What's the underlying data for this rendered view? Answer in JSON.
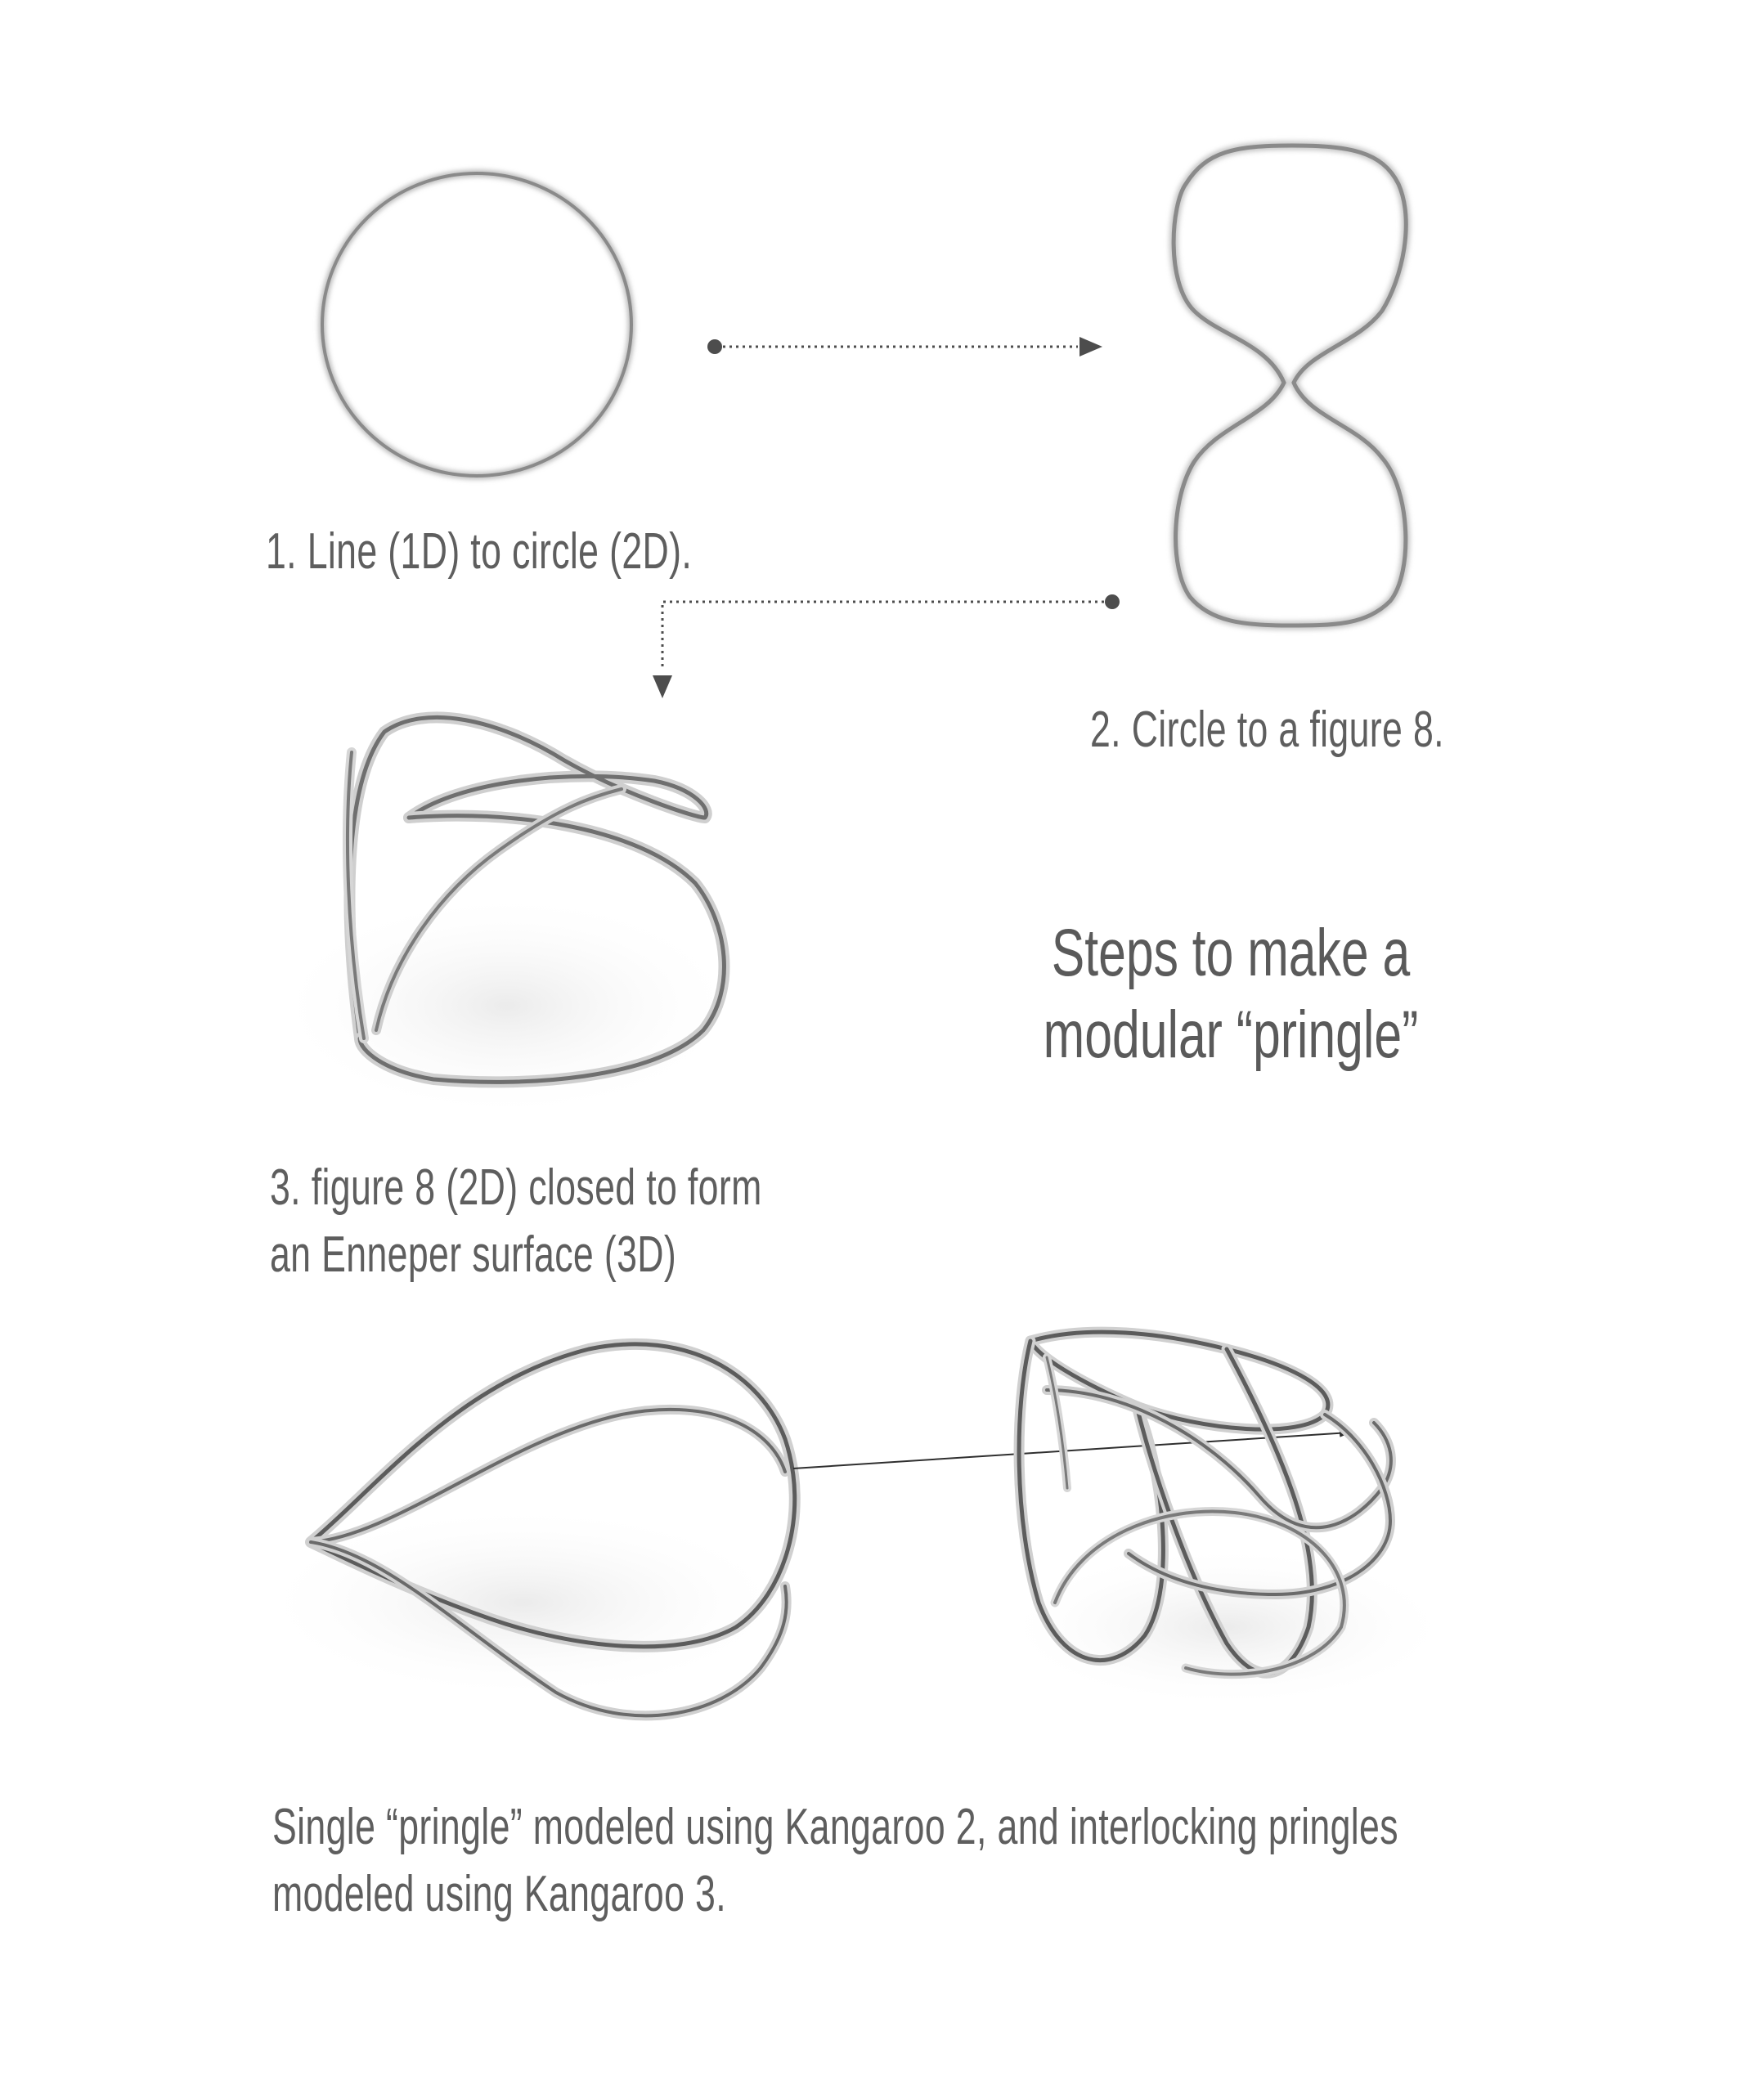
{
  "title": {
    "line1": "Steps to make a",
    "line2": "modular “pringle”"
  },
  "steps": {
    "step1": "1. Line (1D) to circle (2D).",
    "step2": "2. Circle to a figure 8.",
    "step3_line1": "3. figure 8 (2D) closed to form",
    "step3_line2": "an Enneper surface (3D)"
  },
  "footer": {
    "line1": "Single “pringle” modeled using Kangaroo 2, and interlocking pringles",
    "line2": "modeled using Kangaroo 3."
  },
  "colors": {
    "text": "#5e5e5e",
    "stroke_2d": "#8a8a8a",
    "stroke_3d": "#6f6f6f",
    "arrow": "#4d4d4d",
    "background": "#ffffff"
  }
}
